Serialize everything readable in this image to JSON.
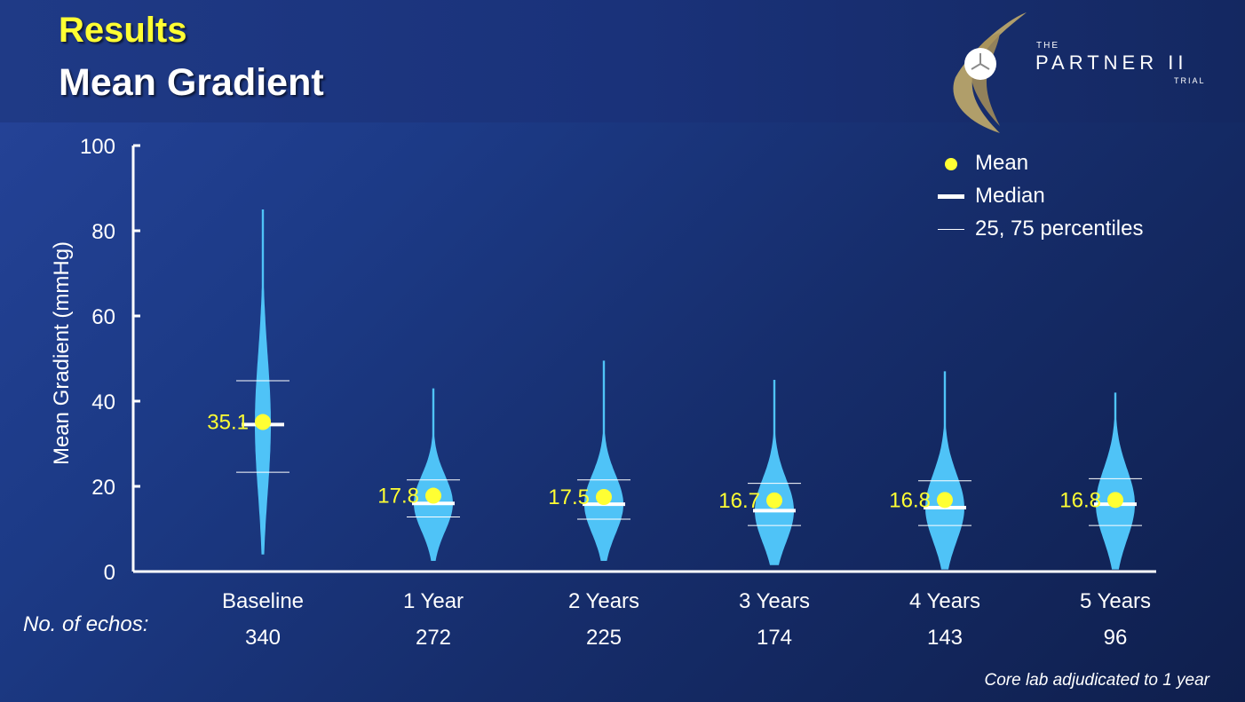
{
  "slide": {
    "title_results": "Results",
    "title_main": "Mean Gradient",
    "echos_label": "No. of echos:",
    "footnote": "Core lab adjudicated to 1 year"
  },
  "logo": {
    "the": "THE",
    "name": "PARTNER II",
    "trial": "TRIAL"
  },
  "colors": {
    "violin": "#4fc3f7",
    "mean_dot": "#ffff33",
    "mean_label": "#ffff33",
    "median": "#ffffff",
    "axis": "#ffffff",
    "logo_gold": "#b8a46a"
  },
  "chart_data": {
    "type": "violin",
    "ylabel": "Mean Gradient (mmHg)",
    "ylim": [
      0,
      100
    ],
    "yticks": [
      0,
      20,
      40,
      60,
      80,
      100
    ],
    "categories": [
      "Baseline",
      "1 Year",
      "2 Years",
      "3 Years",
      "4 Years",
      "5 Years"
    ],
    "echo_counts": [
      "340",
      "272",
      "225",
      "174",
      "143",
      "96"
    ],
    "mean": [
      35.1,
      17.8,
      17.5,
      16.7,
      16.8,
      16.8
    ],
    "mean_labels": [
      "35.1",
      "17.8",
      "17.5",
      "16.7",
      "16.8",
      "16.8"
    ],
    "median": [
      34.5,
      16.0,
      15.8,
      14.3,
      15.0,
      15.8
    ],
    "p25": [
      23.3,
      12.8,
      12.3,
      10.8,
      10.8,
      10.8
    ],
    "p75": [
      44.8,
      21.5,
      21.5,
      20.7,
      21.3,
      21.8
    ],
    "min": [
      4,
      2.5,
      2.5,
      1.5,
      0.5,
      0.5
    ],
    "max": [
      85,
      43,
      49.5,
      45,
      47,
      42
    ],
    "legend": {
      "placement": "top-right",
      "items": [
        "Mean",
        "Median",
        "25, 75 percentiles"
      ]
    },
    "grid": false
  }
}
